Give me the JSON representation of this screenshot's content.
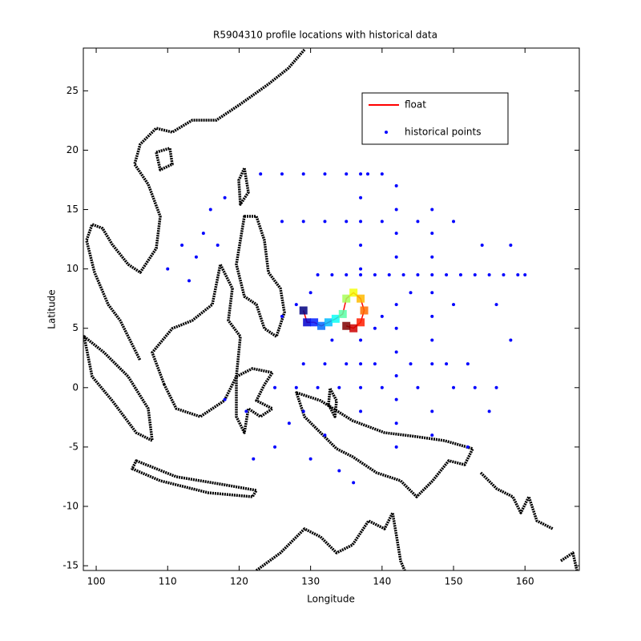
{
  "chart_data": {
    "type": "scatter",
    "title": "R5904310 profile locations with historical data",
    "xlabel": "Longitude",
    "ylabel": "Latitude",
    "xlim": [
      98.2,
      167.6
    ],
    "ylim": [
      -15.4,
      28.6
    ],
    "xticks": [
      100,
      110,
      120,
      130,
      140,
      150,
      160
    ],
    "yticks": [
      -15,
      -10,
      -5,
      0,
      5,
      10,
      15,
      20,
      25
    ],
    "legend": "northeast",
    "series": [
      {
        "name": "float",
        "color": "#ff0000",
        "style": "line",
        "colormap": "jet",
        "x": [
          129,
          129.5,
          130.5,
          131.5,
          132.5,
          133.5,
          134.5,
          135,
          136,
          137,
          137.5,
          137,
          136,
          135
        ],
        "y": [
          6.5,
          5.5,
          5.5,
          5.2,
          5.5,
          5.8,
          6.2,
          7.5,
          8,
          7.5,
          6.5,
          5.5,
          5,
          5.2
        ]
      },
      {
        "name": "historical points",
        "color": "#0000ff",
        "style": "markers",
        "x": [
          131,
          133,
          135,
          137,
          139,
          141,
          143,
          145,
          147,
          149,
          151,
          153,
          155,
          157,
          159,
          137,
          137,
          137,
          137,
          137,
          137,
          137,
          137,
          137,
          142,
          142,
          142,
          142,
          142,
          142,
          142,
          142,
          142,
          142,
          142,
          147,
          147,
          147,
          147,
          147,
          147,
          147,
          147,
          147,
          125,
          128,
          131,
          134,
          140,
          145,
          150,
          153,
          156,
          129,
          132,
          135,
          139,
          144,
          149,
          152,
          123,
          126,
          129,
          132,
          135,
          138,
          140,
          126,
          129,
          132,
          135,
          140,
          145,
          150,
          112,
          114,
          115,
          110,
          117,
          113,
          118,
          116,
          127,
          130,
          132,
          134,
          136,
          129,
          125,
          121,
          122,
          118,
          155,
          152,
          156,
          158,
          154,
          160,
          158,
          128,
          130,
          126,
          133,
          139,
          140,
          144,
          150
        ],
        "y": [
          9.5,
          9.5,
          9.5,
          9.5,
          9.5,
          9.5,
          9.5,
          9.5,
          9.5,
          9.5,
          9.5,
          9.5,
          9.5,
          9.5,
          9.5,
          -2,
          0,
          2,
          4,
          10,
          12,
          14,
          16,
          18,
          -5,
          -3,
          -1,
          1,
          3,
          5,
          7,
          11,
          13,
          15,
          17,
          -4,
          -2,
          2,
          4,
          6,
          8,
          11,
          13,
          15,
          0,
          0,
          0,
          0,
          0,
          0,
          0,
          0,
          0,
          2,
          2,
          2,
          2,
          2,
          2,
          2,
          18,
          18,
          18,
          18,
          18,
          18,
          18,
          14,
          14,
          14,
          14,
          14,
          14,
          14,
          12,
          11,
          13,
          10,
          12,
          9,
          16,
          15,
          -3,
          -6,
          -4,
          -7,
          -8,
          -2,
          -5,
          -2,
          -6,
          -1,
          -2,
          -5,
          7,
          4,
          12,
          9.5,
          12,
          7,
          8,
          6,
          4,
          5,
          6,
          8,
          7
        ]
      }
    ]
  }
}
